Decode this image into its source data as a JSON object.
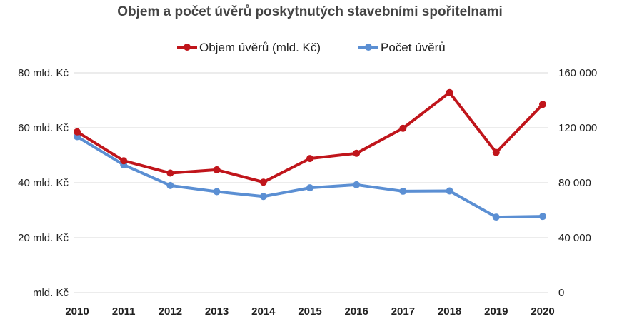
{
  "chart_data": {
    "type": "line",
    "title": "Objem a počet úvěrů poskytnutých stavebními spořitelnami",
    "categories": [
      "2010",
      "2011",
      "2012",
      "2013",
      "2014",
      "2015",
      "2016",
      "2017",
      "2018",
      "2019",
      "2020"
    ],
    "series": [
      {
        "name": "Objem úvěrů (mld. Kč)",
        "axis": "left",
        "color": "#c0151b",
        "values": [
          58.5,
          48,
          43.5,
          44.7,
          40.2,
          48.8,
          50.7,
          59.8,
          72.8,
          51,
          68.5
        ]
      },
      {
        "name": "Počet úvěrů",
        "axis": "right",
        "color": "#5b8fd3",
        "values": [
          113500,
          93000,
          78000,
          73500,
          70000,
          76300,
          78500,
          73800,
          74000,
          55000,
          55500
        ]
      }
    ],
    "y_left": {
      "ylim": [
        0,
        80
      ],
      "ticks": [
        0,
        20,
        40,
        60,
        80
      ],
      "tick_labels": [
        "mld. Kč",
        "20 mld. Kč",
        "40 mld. Kč",
        "60 mld. Kč",
        "80 mld. Kč"
      ]
    },
    "y_right": {
      "ylim": [
        0,
        160000
      ],
      "ticks": [
        0,
        40000,
        80000,
        120000,
        160000
      ],
      "tick_labels": [
        "0",
        "40 000",
        "80 000",
        "120 000",
        "160 000"
      ]
    },
    "grid": true,
    "legend_position": "top"
  }
}
